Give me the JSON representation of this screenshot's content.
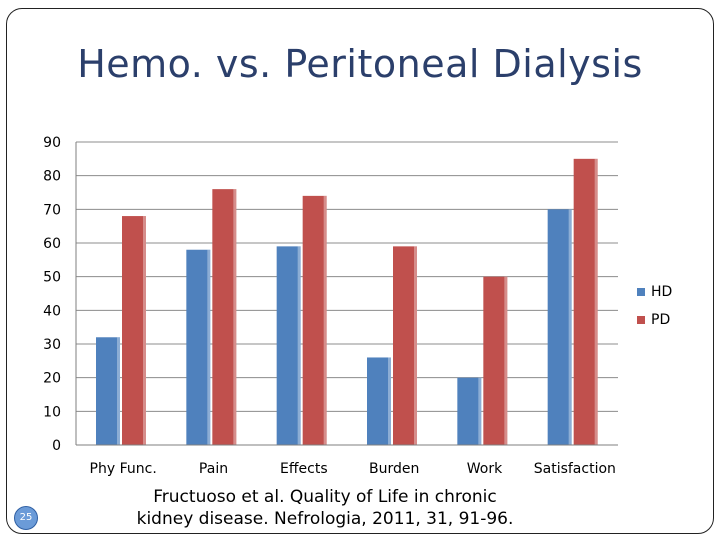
{
  "slide": {
    "title": "Hemo. vs. Peritoneal Dialysis",
    "citation_line1": "Fructuoso et al.  Quality of Life in chronic",
    "citation_line2": "kidney disease. Nefrologia, 2011, 31, 91-96.",
    "slide_number": "25"
  },
  "chart_data": {
    "type": "bar",
    "title": "",
    "xlabel": "",
    "ylabel": "",
    "categories": [
      "Phy Func.",
      "Pain",
      "Effects",
      "Burden",
      "Work",
      "Satisfaction"
    ],
    "series": [
      {
        "name": "HD",
        "color": "#4f81bd",
        "values": [
          32,
          58,
          59,
          26,
          20,
          70
        ]
      },
      {
        "name": "PD",
        "color": "#c0504d",
        "values": [
          68,
          76,
          74,
          59,
          50,
          85
        ]
      }
    ],
    "ylim": [
      0,
      90
    ],
    "yticks": [
      0,
      10,
      20,
      30,
      40,
      50,
      60,
      70,
      80,
      90
    ],
    "grid": true,
    "legend": "right"
  }
}
